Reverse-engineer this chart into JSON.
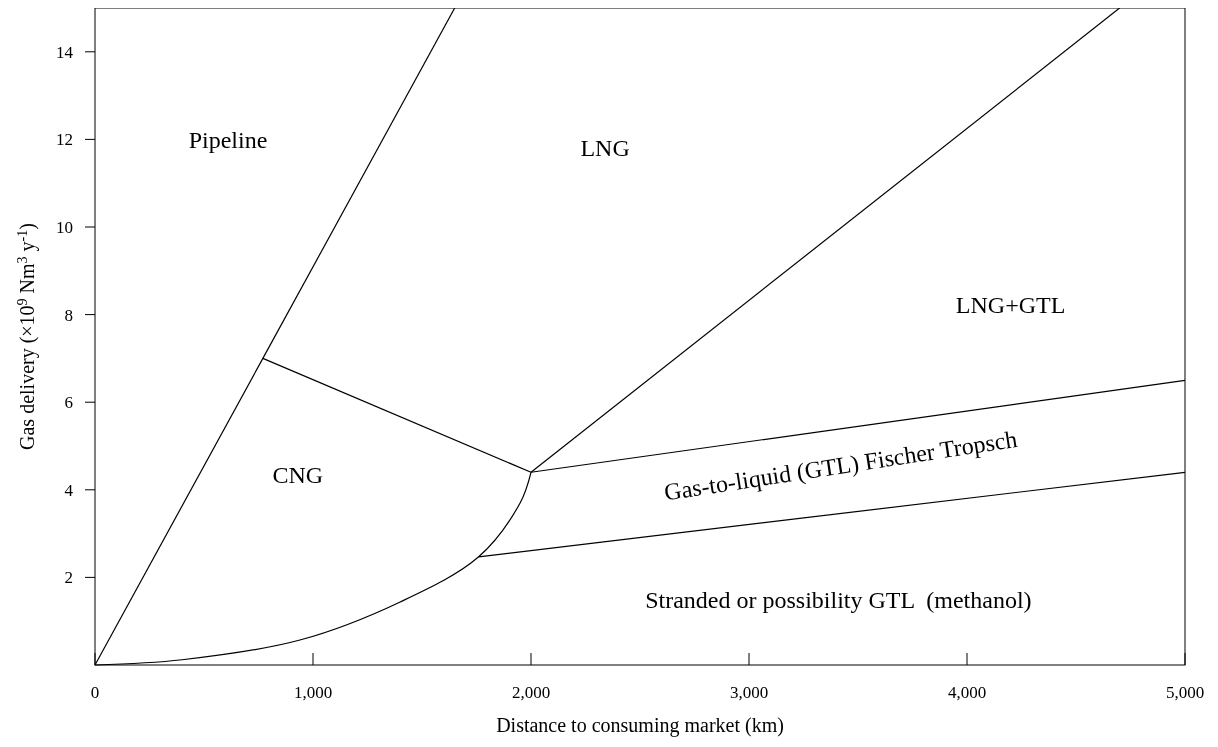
{
  "chart_data": {
    "type": "line",
    "xlabel": "Distance to consuming market (km)",
    "ylabel": "Gas delivery (×10$^{9}$ Nm$^{3}$ y$^{-1}$)",
    "xlim": [
      0,
      5000
    ],
    "ylim": [
      0,
      15
    ],
    "xticks": [
      0,
      {
        "value": 1000,
        "label": "1,000"
      },
      {
        "value": 2000,
        "label": "2,000"
      },
      {
        "value": 3000,
        "label": "3,000"
      },
      {
        "value": 4000,
        "label": "4,000"
      },
      {
        "value": 5000,
        "label": "5,000"
      }
    ],
    "yticks": [
      2,
      4,
      6,
      8,
      10,
      12,
      14
    ],
    "grid": false,
    "marker": "none",
    "line_style": "solid",
    "series": [
      {
        "color": "#000000",
        "x": [
          0,
          770,
          1650
        ],
        "values": [
          0,
          7,
          15
        ]
      },
      {
        "color": "#000000",
        "x": [
          770,
          2000
        ],
        "values": [
          7,
          4.4
        ]
      },
      {
        "color": "#000000",
        "x": [
          2000,
          4700
        ],
        "values": [
          4.4,
          15
        ]
      },
      {
        "color": "#000000",
        "x": [
          2000,
          5000
        ],
        "values": [
          4.4,
          6.5
        ]
      },
      {
        "color": "#000000",
        "x": [
          1760,
          5000
        ],
        "values": [
          2.47,
          4.4
        ]
      },
      {
        "color": "#000000",
        "x": [
          0,
          400,
          940,
          1400,
          1760,
          1950,
          2000
        ],
        "values": [
          0,
          0.12,
          0.57,
          1.44,
          2.47,
          3.7,
          4.4
        ]
      }
    ],
    "annotations": [
      "Pipeline",
      "LNG",
      "LNG+GTL",
      "CNG",
      "Gas-to-liquid (GTL) Fischer Tropsch",
      "Stranded or possibility GTL  (methanol)"
    ]
  }
}
